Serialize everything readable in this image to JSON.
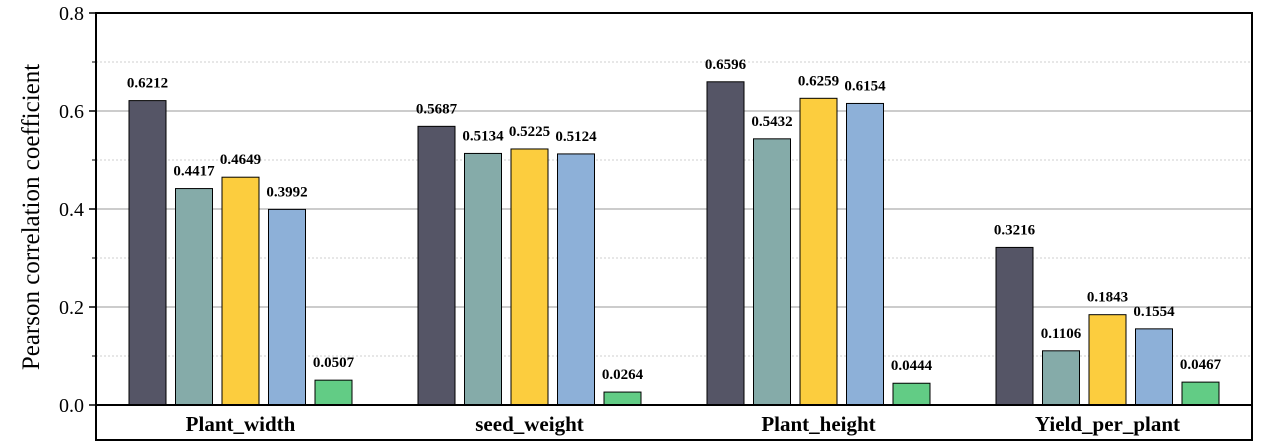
{
  "chart_data": {
    "type": "bar",
    "title": "",
    "xlabel": "",
    "ylabel": "Pearson correlation coefficient",
    "ylim": [
      0,
      0.8
    ],
    "yticks": [
      "0.0",
      "0.2",
      "0.4",
      "0.6",
      "0.8"
    ],
    "grid": true,
    "categories": [
      "Plant_width",
      "seed_weight",
      "Plant_height",
      "Yield_per_plant"
    ],
    "series": [
      {
        "name": "series_1",
        "color": "#555566",
        "values": [
          0.6212,
          0.5687,
          0.6596,
          0.3216
        ],
        "labels": [
          "0.6212",
          "0.5687",
          "0.6596",
          "0.3216"
        ]
      },
      {
        "name": "series_2",
        "color": "#85aba9",
        "values": [
          0.4417,
          0.5134,
          0.5432,
          0.1106
        ],
        "labels": [
          "0.4417",
          "0.5134",
          "0.5432",
          "0.1106"
        ]
      },
      {
        "name": "series_3",
        "color": "#fccd3e",
        "values": [
          0.4649,
          0.5225,
          0.6259,
          0.1843
        ],
        "labels": [
          "0.4649",
          "0.5225",
          "0.6259",
          "0.1843"
        ]
      },
      {
        "name": "series_4",
        "color": "#8db0d8",
        "values": [
          0.3992,
          0.5124,
          0.6154,
          0.1554
        ],
        "labels": [
          "0.3992",
          "0.5124",
          "0.6154",
          "0.1554"
        ]
      },
      {
        "name": "series_5",
        "color": "#62cc85",
        "values": [
          0.0507,
          0.0264,
          0.0444,
          0.0467
        ],
        "labels": [
          "0.0507",
          "0.0264",
          "0.0444",
          "0.0467"
        ]
      }
    ]
  }
}
